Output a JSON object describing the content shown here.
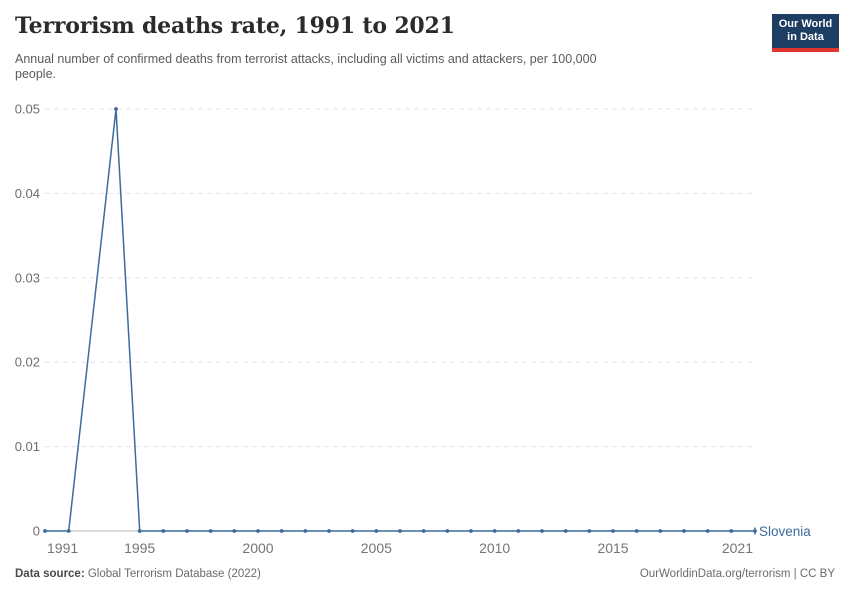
{
  "header": {
    "title": "Terrorism deaths rate, 1991 to 2021",
    "subtitle": "Annual number of confirmed deaths from terrorist attacks, including all victims and attackers, per 100,000\npeople."
  },
  "logo": {
    "line1": "Our World",
    "line2": "in Data",
    "bg_color": "#1d3d63",
    "stripe_color": "#e0362d"
  },
  "chart_data": {
    "type": "line",
    "title": "Terrorism deaths rate, 1991 to 2021",
    "x": [
      1991,
      1992,
      1993,
      1994,
      1995,
      1996,
      1997,
      1998,
      1999,
      2000,
      2001,
      2002,
      2003,
      2004,
      2005,
      2006,
      2007,
      2008,
      2009,
      2010,
      2011,
      2012,
      2013,
      2014,
      2015,
      2016,
      2017,
      2018,
      2019,
      2020,
      2021
    ],
    "series": [
      {
        "name": "Slovenia",
        "color": "#3d6b9c",
        "values": [
          0,
          0,
          null,
          0.05,
          0,
          0,
          0,
          0,
          0,
          0,
          0,
          0,
          0,
          0,
          0,
          0,
          0,
          0,
          0,
          0,
          0,
          0,
          0,
          0,
          0,
          0,
          0,
          0,
          0,
          0,
          0
        ]
      }
    ],
    "xlim": [
      1991,
      2021
    ],
    "ylim": [
      0,
      0.05
    ],
    "y_ticks": [
      0,
      0.01,
      0.02,
      0.03,
      0.04,
      0.05
    ],
    "y_tick_labels": [
      "0",
      "0.01",
      "0.02",
      "0.03",
      "0.04",
      "0.05"
    ],
    "x_ticks": [
      1991,
      1995,
      2000,
      2005,
      2010,
      2015,
      2021
    ],
    "grid": "horizontal dashed gridlines, solid zero axis",
    "legend_position": "label at end of line",
    "note_missing": "1993 has no data point; line interpolates 1992 to 1994"
  },
  "colors": {
    "line": "#3d6b9c",
    "gridline": "#e3e3e3",
    "zero_axis": "#b3b3b3",
    "y_tick_text": "#6e6e6e",
    "x_tick_text": "#757575"
  },
  "footer": {
    "source_label": "Data source:",
    "source_value": " Global Terrorism Database (2022)",
    "credit": "OurWorldinData.org/terrorism | CC BY"
  }
}
